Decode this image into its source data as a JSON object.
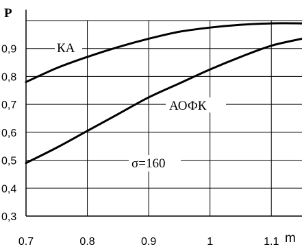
{
  "chart_data": {
    "type": "line",
    "ylabel": "P",
    "xlabel": "m",
    "xlim": [
      0.7,
      1.15
    ],
    "ylim": [
      0.3,
      1.0
    ],
    "x_ticks": [
      "0.7",
      "0.8",
      "0.9",
      "1",
      "1.1"
    ],
    "y_ticks": [
      "0,3",
      "0,4",
      "0,5",
      "0,6",
      "0,7",
      "0,8",
      "0,9"
    ],
    "grid": true,
    "annotation": "σ=160",
    "series": [
      {
        "name": "КА",
        "x": [
          0.7,
          0.75,
          0.8,
          0.85,
          0.9,
          0.95,
          1.0,
          1.05,
          1.1,
          1.15
        ],
        "y": [
          0.78,
          0.83,
          0.87,
          0.905,
          0.935,
          0.96,
          0.975,
          0.985,
          0.99,
          0.99
        ]
      },
      {
        "name": "АОФК",
        "x": [
          0.7,
          0.75,
          0.8,
          0.85,
          0.9,
          0.95,
          1.0,
          1.05,
          1.1,
          1.15
        ],
        "y": [
          0.49,
          0.545,
          0.605,
          0.665,
          0.725,
          0.775,
          0.825,
          0.87,
          0.91,
          0.935
        ]
      }
    ]
  }
}
